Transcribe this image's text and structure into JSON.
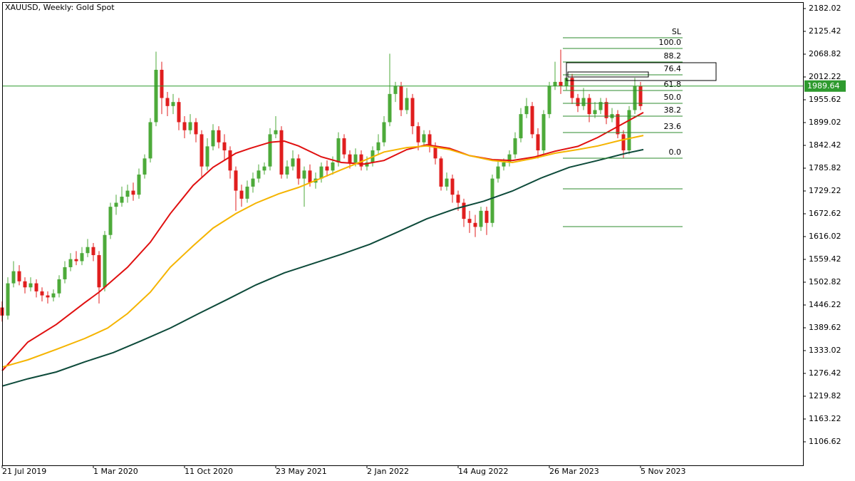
{
  "chart_data": {
    "type": "candlestick",
    "title": "XAUUSD, Weekly:  Gold Spot",
    "up_color": "#4daa3a",
    "down_color": "#e01e1e",
    "x": [
      0,
      2,
      4,
      6,
      8,
      10,
      12,
      14,
      16,
      18,
      20,
      22,
      24,
      26,
      28,
      30,
      32,
      34,
      36,
      38,
      40,
      42,
      44,
      46,
      48,
      50,
      52,
      54,
      56,
      58,
      60,
      62,
      64,
      66,
      68,
      70,
      72,
      74,
      76,
      78,
      80,
      82,
      84,
      86,
      88,
      90,
      92,
      94,
      96,
      98,
      100,
      102,
      104,
      106,
      108,
      110,
      112,
      114,
      116,
      118,
      120,
      122,
      124,
      126,
      128,
      130,
      132,
      134,
      136,
      138,
      140,
      142,
      144,
      146,
      148,
      150,
      152,
      154,
      156,
      158,
      160,
      162,
      164,
      166,
      168,
      170,
      172,
      174,
      176,
      178,
      180,
      182,
      184,
      186,
      188,
      190,
      192,
      194,
      196,
      198,
      200,
      202,
      204,
      206,
      208,
      210,
      212,
      214,
      216,
      218,
      220,
      222,
      224
    ],
    "open": [
      1440,
      1420,
      1500,
      1530,
      1505,
      1490,
      1500,
      1480,
      1470,
      1465,
      1475,
      1510,
      1540,
      1560,
      1555,
      1575,
      1590,
      1570,
      1490,
      1620,
      1690,
      1700,
      1715,
      1730,
      1720,
      1770,
      1810,
      1900,
      2030,
      1960,
      1940,
      1950,
      1900,
      1880,
      1900,
      1870,
      1790,
      1840,
      1880,
      1850,
      1830,
      1780,
      1730,
      1710,
      1740,
      1760,
      1780,
      1790,
      1870,
      1880,
      1770,
      1790,
      1810,
      1760,
      1780,
      1750,
      1760,
      1790,
      1780,
      1800,
      1860,
      1820,
      1800,
      1820,
      1790,
      1800,
      1830,
      1850,
      1900,
      1970,
      1990,
      1930,
      1960,
      1890,
      1850,
      1870,
      1840,
      1810,
      1740,
      1760,
      1720,
      1700,
      1660,
      1650,
      1640,
      1680,
      1650,
      1760,
      1790,
      1800,
      1820,
      1860,
      1920,
      1940,
      1870,
      1830,
      1920,
      1990,
      2000,
      1990,
      2010,
      1960,
      1940,
      1960,
      1920,
      1930,
      1950,
      1910,
      1920,
      1870,
      1830,
      1930,
      1990
    ],
    "high": [
      1455,
      1515,
      1555,
      1545,
      1515,
      1515,
      1510,
      1490,
      1480,
      1485,
      1520,
      1555,
      1575,
      1580,
      1590,
      1610,
      1600,
      1580,
      1630,
      1700,
      1720,
      1740,
      1745,
      1750,
      1785,
      1820,
      1910,
      2075,
      2050,
      1975,
      1970,
      1960,
      1915,
      1920,
      1910,
      1880,
      1860,
      1895,
      1890,
      1870,
      1840,
      1790,
      1745,
      1755,
      1775,
      1795,
      1800,
      1885,
      1915,
      1890,
      1805,
      1830,
      1820,
      1790,
      1795,
      1775,
      1800,
      1805,
      1815,
      1875,
      1870,
      1830,
      1835,
      1830,
      1815,
      1840,
      1870,
      1915,
      2070,
      2000,
      2000,
      1985,
      1970,
      1900,
      1880,
      1880,
      1850,
      1815,
      1775,
      1770,
      1730,
      1710,
      1680,
      1670,
      1690,
      1690,
      1770,
      1805,
      1810,
      1830,
      1875,
      1935,
      1960,
      1950,
      1885,
      1930,
      2000,
      2050,
      2080,
      2030,
      2020,
      1970,
      1985,
      1970,
      1950,
      1960,
      1960,
      1935,
      1930,
      1880,
      1940,
      2010,
      2000
    ],
    "low": [
      1405,
      1410,
      1490,
      1495,
      1475,
      1480,
      1465,
      1455,
      1450,
      1455,
      1465,
      1500,
      1530,
      1545,
      1545,
      1565,
      1555,
      1450,
      1480,
      1610,
      1670,
      1690,
      1700,
      1705,
      1710,
      1760,
      1800,
      1890,
      1920,
      1915,
      1920,
      1880,
      1860,
      1870,
      1850,
      1765,
      1780,
      1830,
      1835,
      1805,
      1760,
      1680,
      1690,
      1700,
      1725,
      1750,
      1770,
      1780,
      1860,
      1760,
      1760,
      1780,
      1745,
      1690,
      1740,
      1735,
      1750,
      1765,
      1770,
      1790,
      1810,
      1785,
      1790,
      1780,
      1780,
      1790,
      1820,
      1840,
      1890,
      1950,
      1915,
      1920,
      1870,
      1830,
      1840,
      1825,
      1795,
      1730,
      1730,
      1700,
      1680,
      1640,
      1625,
      1615,
      1630,
      1620,
      1640,
      1750,
      1780,
      1790,
      1810,
      1850,
      1910,
      1860,
      1810,
      1820,
      1910,
      1980,
      1970,
      1980,
      1945,
      1925,
      1930,
      1900,
      1910,
      1920,
      1895,
      1900,
      1860,
      1810,
      1820,
      1920,
      1930
    ],
    "close": [
      1420,
      1500,
      1530,
      1505,
      1490,
      1500,
      1480,
      1470,
      1465,
      1475,
      1510,
      1540,
      1560,
      1555,
      1575,
      1590,
      1570,
      1490,
      1620,
      1690,
      1700,
      1715,
      1730,
      1720,
      1770,
      1810,
      1900,
      2030,
      1960,
      1940,
      1950,
      1900,
      1880,
      1900,
      1870,
      1790,
      1840,
      1880,
      1850,
      1830,
      1780,
      1730,
      1710,
      1740,
      1760,
      1780,
      1790,
      1870,
      1880,
      1770,
      1790,
      1810,
      1760,
      1780,
      1750,
      1760,
      1790,
      1780,
      1800,
      1860,
      1820,
      1800,
      1820,
      1790,
      1800,
      1830,
      1850,
      1900,
      1970,
      1990,
      1930,
      1960,
      1890,
      1850,
      1870,
      1840,
      1810,
      1740,
      1760,
      1720,
      1700,
      1660,
      1650,
      1640,
      1680,
      1650,
      1760,
      1790,
      1800,
      1820,
      1860,
      1920,
      1940,
      1870,
      1830,
      1920,
      1990,
      2000,
      1990,
      2010,
      1960,
      1940,
      1960,
      1920,
      1930,
      1950,
      1910,
      1920,
      1870,
      1830,
      1930,
      1990,
      1940
    ],
    "series": [
      {
        "color": "#e01010",
        "x": [
          0,
          9,
          19,
          29,
          34,
          44,
          52,
          59,
          67,
          74,
          82,
          87,
          94,
          99,
          104,
          112,
          119,
          127,
          134,
          142,
          149,
          157,
          164,
          172,
          179,
          187,
          194,
          202,
          209,
          217,
          225
        ],
        "values": [
          1283,
          1354,
          1398,
          1452,
          1478,
          1540,
          1602,
          1673,
          1743,
          1788,
          1823,
          1835,
          1850,
          1853,
          1841,
          1814,
          1800,
          1796,
          1805,
          1832,
          1844,
          1835,
          1817,
          1807,
          1805,
          1814,
          1828,
          1840,
          1862,
          1893,
          1924
        ]
      },
      {
        "color": "#f5b400",
        "x": [
          0,
          9,
          19,
          29,
          37,
          44,
          52,
          59,
          67,
          74,
          82,
          89,
          97,
          104,
          112,
          119,
          127,
          134,
          142,
          149,
          157,
          164,
          172,
          179,
          187,
          194,
          202,
          209,
          217,
          225
        ],
        "values": [
          1292,
          1310,
          1336,
          1363,
          1389,
          1425,
          1478,
          1540,
          1593,
          1637,
          1673,
          1699,
          1722,
          1738,
          1761,
          1782,
          1805,
          1826,
          1837,
          1841,
          1832,
          1817,
          1805,
          1800,
          1811,
          1823,
          1832,
          1841,
          1855,
          1867
        ]
      },
      {
        "color": "#0d4a3a",
        "x": [
          0,
          9,
          19,
          29,
          39,
          49,
          59,
          69,
          79,
          89,
          99,
          109,
          119,
          129,
          139,
          149,
          159,
          169,
          179,
          189,
          199,
          209,
          219,
          225
        ],
        "values": [
          1245,
          1263,
          1280,
          1305,
          1328,
          1358,
          1389,
          1425,
          1460,
          1496,
          1526,
          1549,
          1572,
          1597,
          1628,
          1660,
          1685,
          1704,
          1729,
          1761,
          1788,
          1805,
          1823,
          1832
        ]
      }
    ],
    "price_line": {
      "value": 1989.64,
      "color": "#2e9a2e"
    },
    "fibonacci": {
      "color": "#2e8b2e",
      "levels": [
        {
          "label": "SL",
          "value": 2109.5
        },
        {
          "label": "100.0",
          "value": 2082.9
        },
        {
          "label": "88.2",
          "value": 2049.4
        },
        {
          "label": "76.4",
          "value": 2017.5
        },
        {
          "label": "61.8",
          "value": 1978.6
        },
        {
          "label": "50.0",
          "value": 1946.8
        },
        {
          "label": "38.2",
          "value": 1914.9
        },
        {
          "label": "23.6",
          "value": 1874.2
        },
        {
          "label": "0.0",
          "value": 1810.6
        },
        {
          "value": 1734.5
        },
        {
          "value": 1640.8
        }
      ]
    },
    "xlim": [
      0,
      281
    ],
    "ylim": [
      1048.25,
      2197.94
    ],
    "xticks": [
      {
        "value": 0,
        "label": "21 Jul 2019"
      },
      {
        "value": 32,
        "label": "1 Mar 2020"
      },
      {
        "value": 64,
        "label": "11 Oct 2020"
      },
      {
        "value": 96,
        "label": "23 May 2021"
      },
      {
        "value": 128,
        "label": "2 Jan 2022"
      },
      {
        "value": 160,
        "label": "14 Aug 2022"
      },
      {
        "value": 192,
        "label": "26 Mar 2023"
      },
      {
        "value": 224,
        "label": "5 Nov 2023"
      }
    ],
    "yticks": [
      2182.02,
      2125.42,
      2068.82,
      2012.22,
      1955.62,
      1899.02,
      1842.42,
      1785.82,
      1729.22,
      1672.62,
      1616.02,
      1559.42,
      1502.82,
      1446.22,
      1389.62,
      1333.02,
      1276.42,
      1219.82,
      1163.22,
      1106.62
    ]
  }
}
